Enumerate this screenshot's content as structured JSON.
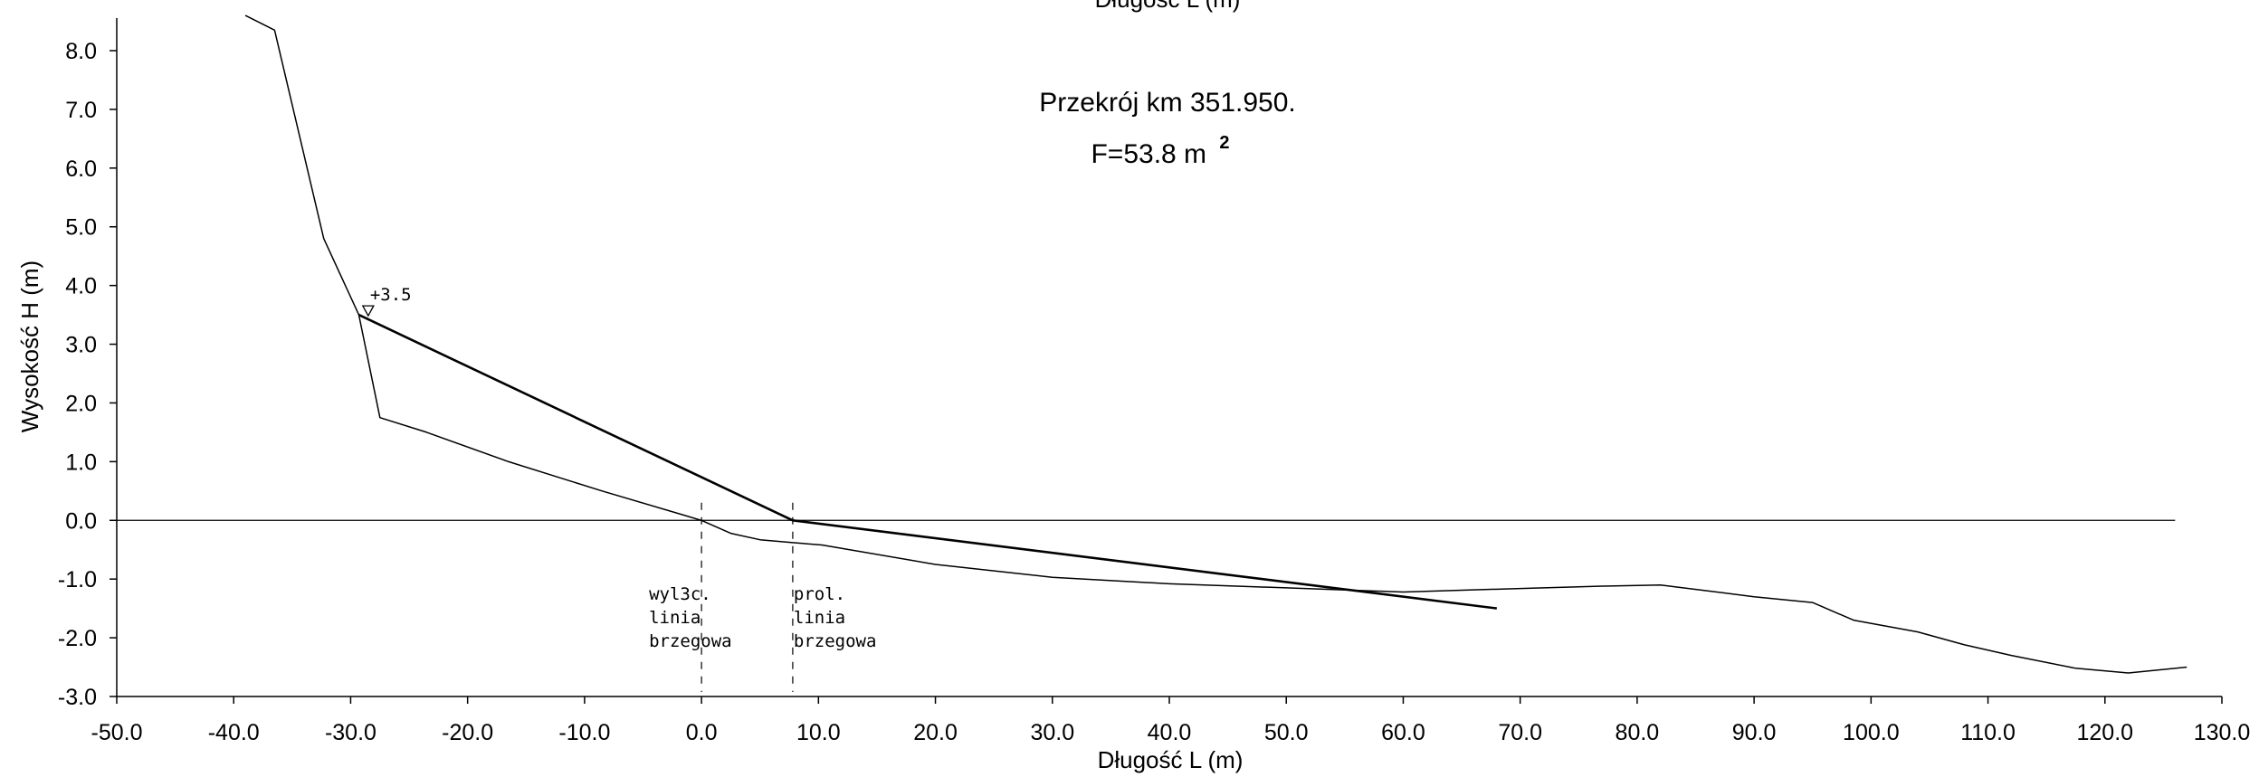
{
  "chart_data": {
    "type": "line",
    "title": "Przekrój km 351.950.",
    "subtitle_main": "F=53.8 m",
    "subtitle_sup": "2",
    "top_label": "Długość L (m)",
    "xlabel": "Długość L (m)",
    "ylabel": "Wysokość H (m)",
    "xlim": [
      -50,
      130
    ],
    "ylim": [
      -3,
      8.5
    ],
    "xticks": [
      -50,
      -40,
      -30,
      -20,
      -10,
      0,
      10,
      20,
      30,
      40,
      50,
      60,
      70,
      80,
      90,
      100,
      110,
      120,
      130
    ],
    "yticks": [
      -3,
      -2,
      -1,
      0,
      1,
      2,
      3,
      4,
      5,
      6,
      7,
      8
    ],
    "xtick_labels": [
      "-50.0",
      "-40.0",
      "-30.0",
      "-20.0",
      "-10.0",
      "0.0",
      "10.0",
      "20.0",
      "30.0",
      "40.0",
      "50.0",
      "60.0",
      "70.0",
      "80.0",
      "90.0",
      "100.0",
      "110.0",
      "120.0",
      "130.0"
    ],
    "ytick_labels": [
      "-3.0",
      "-2.0",
      "-1.0",
      "0.0",
      "1.0",
      "2.0",
      "3.0",
      "4.0",
      "5.0",
      "6.0",
      "7.0",
      "8.0"
    ],
    "grid": false,
    "series": [
      {
        "x": [
          -39,
          -36.5,
          -32.3,
          -29.3,
          -27.5,
          -23.5,
          -16.5,
          -8.5,
          0,
          2.5,
          5,
          7.8,
          10.3,
          20,
          30,
          40,
          50,
          60,
          70,
          77,
          82,
          90,
          95,
          98.5,
          104,
          108,
          112,
          117.5,
          122,
          127
        ],
        "y": [
          8.6,
          8.35,
          4.8,
          3.5,
          1.75,
          1.5,
          1.0,
          0.5,
          0,
          -0.22,
          -0.33,
          -0.38,
          -0.42,
          -0.75,
          -0.97,
          -1.08,
          -1.15,
          -1.22,
          -1.16,
          -1.12,
          -1.1,
          -1.3,
          -1.4,
          -1.7,
          -1.9,
          -2.12,
          -2.3,
          -2.52,
          -2.6,
          -2.5
        ],
        "color": "#000000"
      },
      {
        "x": [
          -29.3,
          7.8,
          68
        ],
        "y": [
          3.5,
          0.0,
          -1.5
        ],
        "color": "#000000"
      }
    ],
    "zero_line": {
      "x": [
        -50,
        126
      ],
      "y": 0
    },
    "vertical_markers": [
      {
        "x": 0,
        "label_lines": [
          "wyl3c.",
          "linia",
          "brzegowa"
        ]
      },
      {
        "x": 7.8,
        "label_lines": [
          "prol.",
          "linia",
          "brzegowa"
        ]
      }
    ],
    "water_level": {
      "x": -28.5,
      "y": 3.5,
      "label": "+3.5"
    }
  }
}
